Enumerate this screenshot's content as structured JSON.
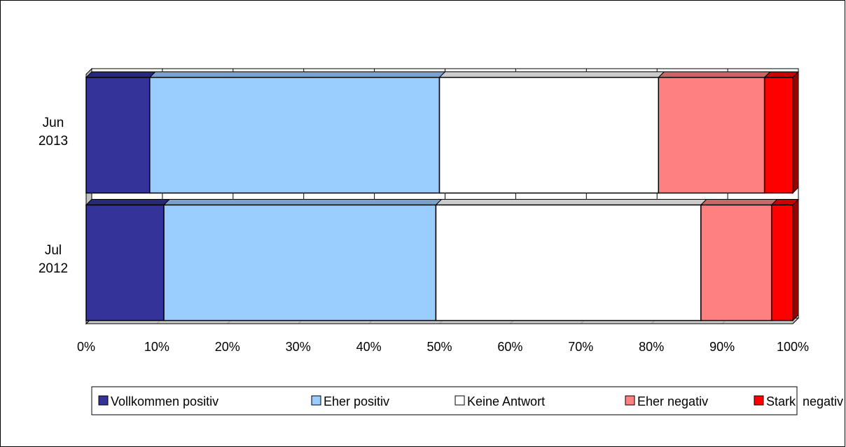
{
  "chart_data": {
    "type": "bar",
    "orientation": "horizontal",
    "stacked": "percent",
    "categories": [
      "Jun 2013",
      "Jul 2012"
    ],
    "category_lines": [
      [
        "Jun",
        "2013"
      ],
      [
        "Jul",
        "2012"
      ]
    ],
    "series": [
      {
        "name": "Vollkommen positiv",
        "color": "#333399",
        "values": [
          9,
          11
        ]
      },
      {
        "name": "Eher positiv",
        "color": "#99ccff",
        "values": [
          41,
          38.5
        ]
      },
      {
        "name": "Keine Antwort",
        "color": "#ffffff",
        "values": [
          31,
          37.5
        ]
      },
      {
        "name": "Eher negativ",
        "color": "#ff8080",
        "values": [
          15,
          10
        ]
      },
      {
        "name": "Stark  negativ",
        "color": "#ff0000",
        "values": [
          4,
          3
        ]
      }
    ],
    "xlim": [
      0,
      100
    ],
    "xticks": [
      "0%",
      "10%",
      "20%",
      "30%",
      "40%",
      "50%",
      "60%",
      "70%",
      "80%",
      "90%",
      "100%"
    ],
    "grid": true,
    "legend_position": "bottom"
  }
}
